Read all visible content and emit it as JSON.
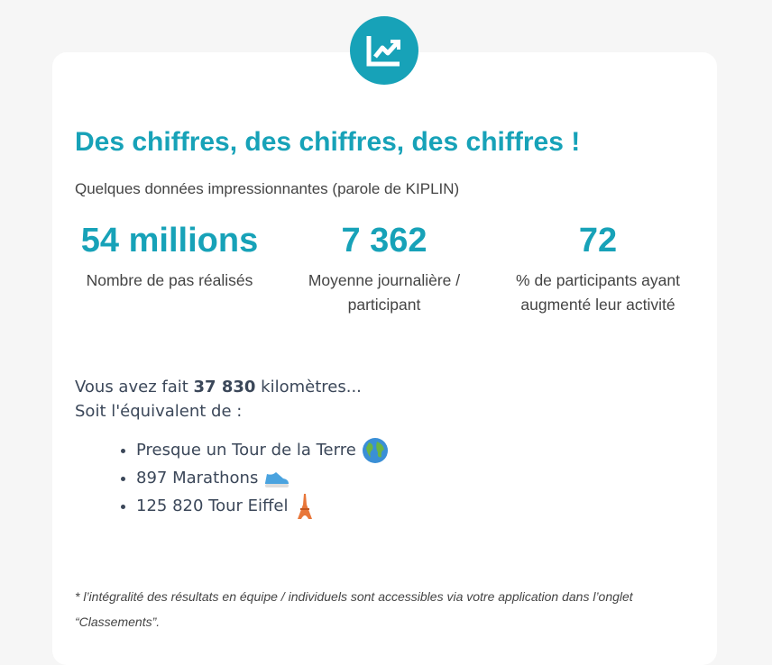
{
  "header": {
    "title": "Des chiffres, des chiffres, des chiffres !",
    "subtitle": "Quelques données impressionnantes (parole de KIPLIN)"
  },
  "stats": [
    {
      "value": "54 millions",
      "label": "Nombre de pas réalisés"
    },
    {
      "value": "7 362",
      "label": "Moyenne journalière / participant"
    },
    {
      "value": "72",
      "label": "% de participants ayant augmenté leur activité"
    }
  ],
  "summary": {
    "before": "Vous avez fait",
    "distance": "37 830",
    "after": "kilomètres...",
    "line2": "Soit l'équivalent de :"
  },
  "equivalents": [
    "Presque un Tour de la Terre",
    "897 Marathons",
    "125 820 Tour Eiffel"
  ],
  "footnote": "* l’intégralité des résultats en équipe / individuels sont accessibles via votre application dans l’onglet “Classements”."
}
